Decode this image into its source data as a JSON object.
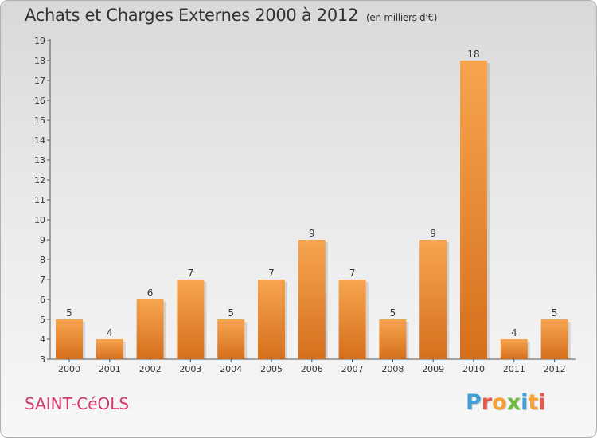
{
  "title": "Achats et Charges Externes 2000 à 2012",
  "unit": "(en milliers d'€)",
  "commune": "SAINT-CéOLS",
  "brand": {
    "text": "Proxiti",
    "letter_colors": [
      "#3f9fd6",
      "#e8584a",
      "#f3a23a",
      "#6dbb3c",
      "#3f9fd6",
      "#f3a23a",
      "#e8584a"
    ]
  },
  "colors": {
    "bar_top": "#f7a54f",
    "bar_bottom": "#d66f1c",
    "axis": "#555555",
    "text": "#333333"
  },
  "chart_data": {
    "type": "bar",
    "categories": [
      "2000",
      "2001",
      "2002",
      "2003",
      "2004",
      "2005",
      "2006",
      "2007",
      "2008",
      "2009",
      "2010",
      "2011",
      "2012"
    ],
    "values": [
      5,
      4,
      6,
      7,
      5,
      7,
      9,
      7,
      5,
      9,
      18,
      4,
      5
    ],
    "ylim": [
      3,
      19
    ],
    "yticks": [
      3,
      4,
      5,
      6,
      7,
      8,
      9,
      10,
      11,
      12,
      13,
      14,
      15,
      16,
      17,
      18,
      19
    ],
    "xlabel": "",
    "ylabel": "",
    "grid": false,
    "data_labels": true
  }
}
